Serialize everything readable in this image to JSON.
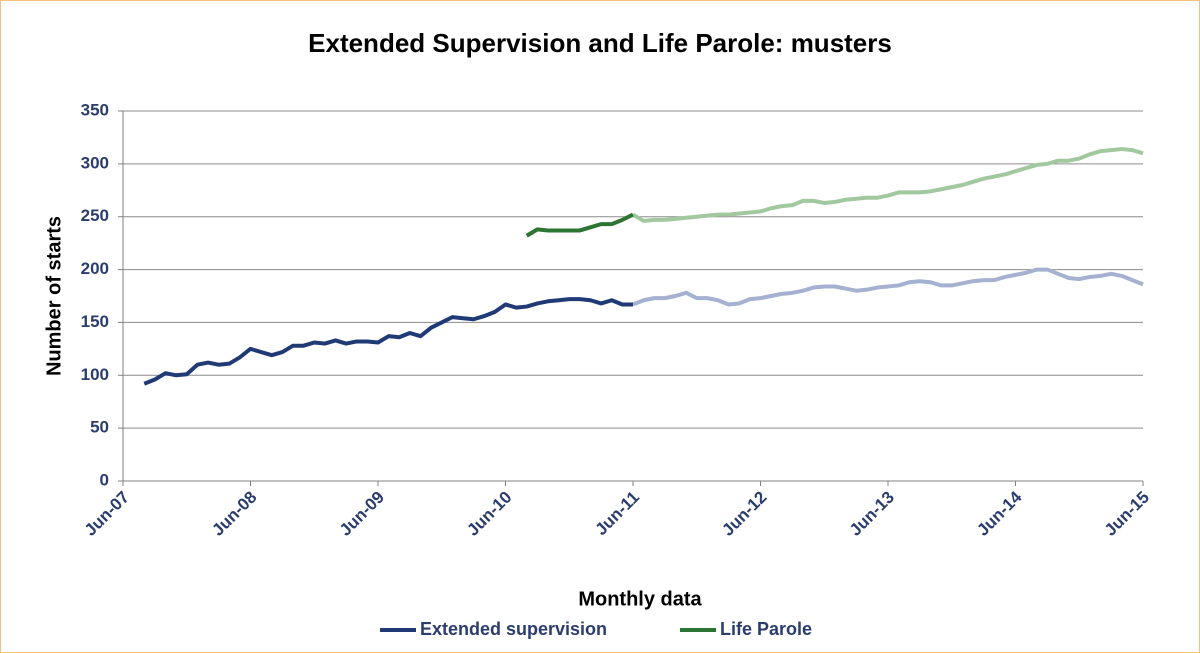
{
  "chart_data": {
    "type": "line",
    "title": "Extended Supervision and Life Parole: musters",
    "x_label": "Monthly data",
    "y_label": "Number of starts",
    "categories": [
      "Jun-07",
      null,
      null,
      null,
      null,
      null,
      null,
      null,
      null,
      null,
      null,
      null,
      "Jun-08",
      null,
      null,
      null,
      null,
      null,
      null,
      null,
      null,
      null,
      null,
      null,
      "Jun-09",
      null,
      null,
      null,
      null,
      null,
      null,
      null,
      null,
      null,
      null,
      null,
      "Jun-10",
      null,
      null,
      null,
      null,
      null,
      null,
      null,
      null,
      null,
      null,
      null,
      "Jun-11",
      null,
      null,
      null,
      null,
      null,
      null,
      null,
      null,
      null,
      null,
      null,
      "Jun-12",
      null,
      null,
      null,
      null,
      null,
      null,
      null,
      null,
      null,
      null,
      null,
      "Jun-13",
      null,
      null,
      null,
      null,
      null,
      null,
      null,
      null,
      null,
      null,
      null,
      "Jun-14",
      null,
      null,
      null,
      null,
      null,
      null,
      null,
      null,
      null,
      null,
      null,
      "Jun-15"
    ],
    "ylim": [
      0,
      350
    ],
    "yticks": [
      0,
      50,
      100,
      150,
      200,
      250,
      300,
      350
    ],
    "grid": true,
    "legend": "bottom",
    "series": [
      {
        "name": "Extended supervision",
        "color": "#1f3a75",
        "forecast_color": "#a4b1d0",
        "values": [
          null,
          null,
          92,
          96,
          102,
          100,
          101,
          110,
          112,
          110,
          111,
          117,
          125,
          122,
          119,
          122,
          128,
          128,
          131,
          130,
          133,
          130,
          132,
          132,
          131,
          137,
          136,
          140,
          137,
          145,
          150,
          155,
          154,
          153,
          156,
          160,
          167,
          164,
          165,
          168,
          170,
          171,
          172,
          172,
          171,
          168,
          171,
          167,
          167,
          null,
          null,
          null,
          null,
          null,
          null,
          null,
          null,
          null,
          null,
          null,
          null,
          null,
          null,
          null,
          null,
          null,
          null,
          null,
          null,
          null,
          null,
          null,
          null,
          null,
          null,
          null,
          null,
          null,
          null,
          null,
          null,
          null,
          null,
          null,
          null,
          null,
          null,
          null,
          null,
          null,
          null,
          null,
          null,
          null,
          null,
          null,
          null
        ],
        "forecast_values": [
          null,
          null,
          null,
          null,
          null,
          null,
          null,
          null,
          null,
          null,
          null,
          null,
          null,
          null,
          null,
          null,
          null,
          null,
          null,
          null,
          null,
          null,
          null,
          null,
          null,
          null,
          null,
          null,
          null,
          null,
          null,
          null,
          null,
          null,
          null,
          null,
          null,
          null,
          null,
          null,
          null,
          null,
          null,
          null,
          null,
          null,
          null,
          null,
          167,
          171,
          173,
          173,
          175,
          178,
          173,
          173,
          171,
          167,
          168,
          172,
          173,
          175,
          177,
          178,
          180,
          183,
          184,
          184,
          182,
          180,
          181,
          183,
          184,
          185,
          188,
          189,
          188,
          185,
          185,
          187,
          189,
          190,
          190,
          193,
          195,
          197,
          200,
          200,
          196,
          192,
          191,
          193,
          194,
          196,
          194,
          190,
          186
        ]
      },
      {
        "name": "Life Parole",
        "color": "#2e7433",
        "forecast_color": "#a2c8a0",
        "values": [
          null,
          null,
          null,
          null,
          null,
          null,
          null,
          null,
          null,
          null,
          null,
          null,
          null,
          null,
          null,
          null,
          null,
          null,
          null,
          null,
          null,
          null,
          null,
          null,
          null,
          null,
          null,
          null,
          null,
          null,
          null,
          null,
          null,
          null,
          null,
          null,
          null,
          null,
          232,
          238,
          237,
          237,
          237,
          237,
          240,
          243,
          243,
          247,
          252,
          null,
          null,
          null,
          null,
          null,
          null,
          null,
          null,
          null,
          null,
          null,
          null,
          null,
          null,
          null,
          null,
          null,
          null,
          null,
          null,
          null,
          null,
          null,
          null,
          null,
          null,
          null,
          null,
          null,
          null,
          null,
          null,
          null,
          null,
          null,
          null,
          null,
          null,
          null,
          null,
          null,
          null,
          null,
          null,
          null,
          null,
          null,
          null
        ],
        "forecast_values": [
          null,
          null,
          null,
          null,
          null,
          null,
          null,
          null,
          null,
          null,
          null,
          null,
          null,
          null,
          null,
          null,
          null,
          null,
          null,
          null,
          null,
          null,
          null,
          null,
          null,
          null,
          null,
          null,
          null,
          null,
          null,
          null,
          null,
          null,
          null,
          null,
          null,
          null,
          null,
          null,
          null,
          null,
          null,
          null,
          null,
          null,
          null,
          null,
          252,
          246,
          247,
          247,
          248,
          249,
          250,
          251,
          252,
          252,
          253,
          254,
          255,
          258,
          260,
          261,
          265,
          265,
          263,
          264,
          266,
          267,
          268,
          268,
          270,
          273,
          273,
          273,
          274,
          276,
          278,
          280,
          283,
          286,
          288,
          290,
          293,
          296,
          299,
          300,
          303,
          303,
          305,
          309,
          312,
          313,
          314,
          313,
          310
        ]
      }
    ]
  }
}
